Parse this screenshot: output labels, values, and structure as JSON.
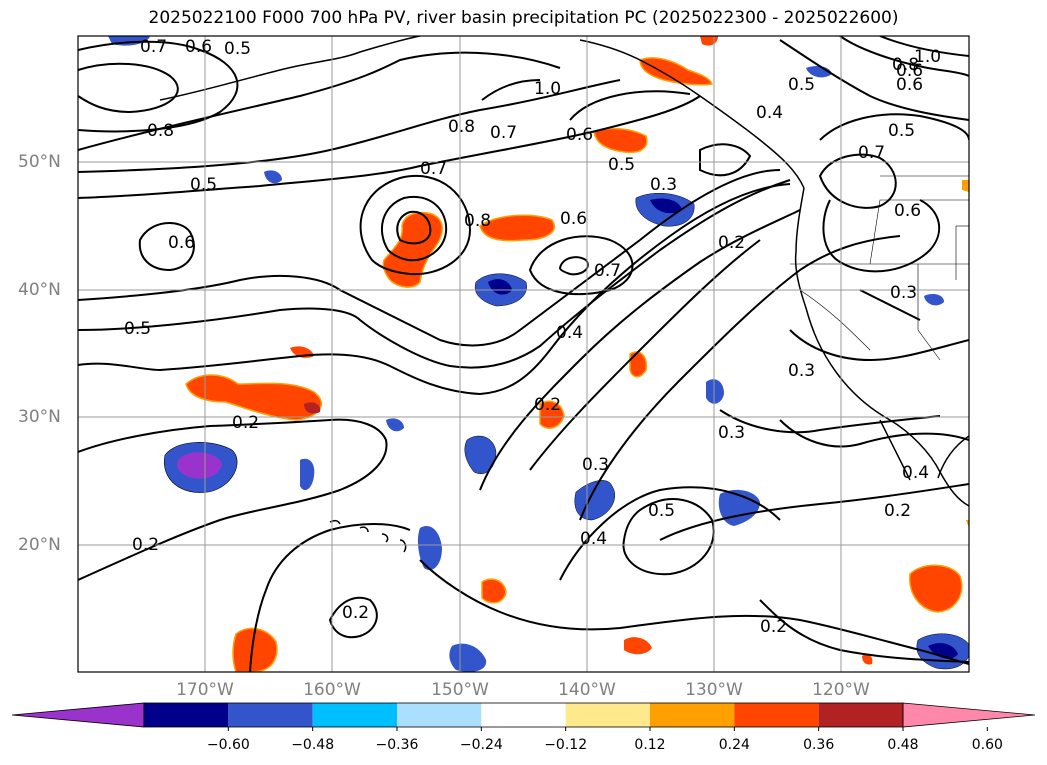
{
  "title": "2025022100 F000 700 hPa PV, river basin precipitation PC (2025022300 - 2025022600)",
  "map": {
    "lat_ticks": [
      "50°N",
      "40°N",
      "30°N",
      "20°N"
    ],
    "lon_ticks": [
      "170°W",
      "160°W",
      "150°W",
      "140°W",
      "130°W",
      "120°W"
    ],
    "contour_labels": [
      "0.7",
      "0.6",
      "0.5",
      "1.0",
      "0.8",
      "0.7",
      "0.6",
      "0.8",
      "0.5",
      "0.7",
      "0.5",
      "0.6",
      "0.8",
      "0.6",
      "0.7",
      "0.5",
      "0.4",
      "0.2",
      "0.3",
      "0.2",
      "0.3",
      "0.3",
      "0.2",
      "0.3",
      "0.5",
      "0.4",
      "0.2",
      "0.2",
      "0.2",
      "0.4",
      "0.2",
      "0.6",
      "0.7",
      "0.5",
      "0.6",
      "0.6",
      "0.5",
      "1.0",
      "0.8",
      "0.4",
      "0.3"
    ],
    "grid": true
  },
  "colorbar": {
    "ticks": [
      "−0.60",
      "−0.48",
      "−0.36",
      "−0.24",
      "−0.12",
      "0.12",
      "0.24",
      "0.36",
      "0.48",
      "0.60"
    ],
    "colors": [
      "#9933cc",
      "#00008b",
      "#3355cc",
      "#00bfff",
      "#aadfff",
      "#ffffff",
      "#ffe98c",
      "#ffa000",
      "#ff4500",
      "#b22222",
      "#ff88aa"
    ],
    "extend": "both"
  }
}
